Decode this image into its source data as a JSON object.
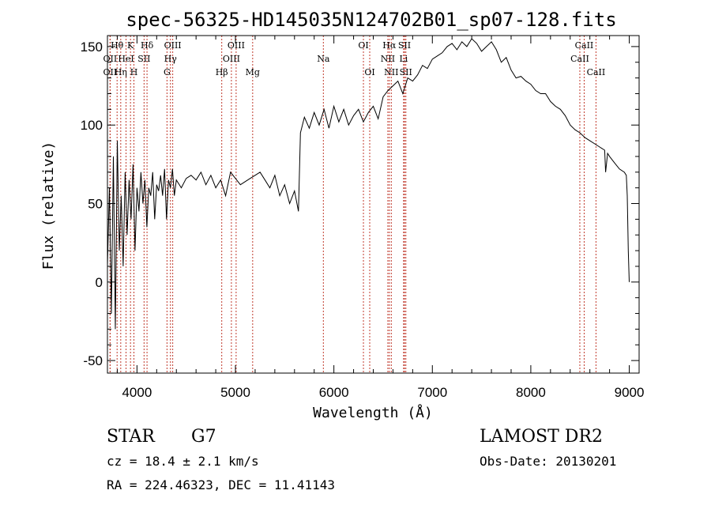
{
  "chart_data": {
    "type": "line",
    "title": "spec-56325-HD145035N124702B01_sp07-128.fits",
    "xlabel": "Wavelength (Å)",
    "ylabel": "Flux (relative)",
    "xlim": [
      3700,
      9100
    ],
    "ylim": [
      -58,
      157
    ],
    "x_ticks": [
      4000,
      5000,
      6000,
      7000,
      8000,
      9000
    ],
    "y_ticks": [
      -50,
      0,
      50,
      100,
      150
    ],
    "line_color": "#c0392b",
    "series": [
      {
        "x": [
          3700,
          3720,
          3740,
          3760,
          3780,
          3800,
          3820,
          3840,
          3860,
          3880,
          3900,
          3920,
          3940,
          3960,
          3980,
          4000,
          4020,
          4040,
          4060,
          4080,
          4100,
          4120,
          4140,
          4160,
          4180,
          4200,
          4220,
          4240,
          4260,
          4280,
          4300,
          4320,
          4340,
          4360,
          4380,
          4400,
          4450,
          4500,
          4550,
          4600,
          4650,
          4700,
          4750,
          4800,
          4850,
          4900,
          4950,
          5000,
          5050,
          5100,
          5150,
          5200,
          5250,
          5300,
          5350,
          5400,
          5450,
          5500,
          5550,
          5600,
          5640,
          5660,
          5680,
          5700,
          5750,
          5800,
          5850,
          5900,
          5950,
          6000,
          6050,
          6100,
          6150,
          6200,
          6250,
          6300,
          6350,
          6400,
          6450,
          6500,
          6550,
          6600,
          6650,
          6700,
          6750,
          6800,
          6850,
          6900,
          6950,
          7000,
          7050,
          7100,
          7150,
          7200,
          7250,
          7300,
          7350,
          7400,
          7450,
          7500,
          7550,
          7600,
          7650,
          7700,
          7750,
          7800,
          7850,
          7900,
          7950,
          8000,
          8050,
          8100,
          8150,
          8200,
          8250,
          8300,
          8350,
          8400,
          8450,
          8500,
          8550,
          8600,
          8650,
          8700,
          8750,
          8760,
          8780,
          8800,
          8850,
          8900,
          8950,
          8970,
          8980,
          8990,
          9000
        ],
        "y": [
          10,
          60,
          -20,
          80,
          -30,
          90,
          20,
          55,
          10,
          70,
          30,
          65,
          40,
          75,
          20,
          60,
          45,
          70,
          50,
          65,
          35,
          60,
          55,
          70,
          40,
          62,
          58,
          68,
          55,
          72,
          40,
          65,
          60,
          72,
          55,
          65,
          60,
          66,
          68,
          65,
          70,
          62,
          68,
          60,
          65,
          55,
          70,
          66,
          62,
          64,
          66,
          68,
          70,
          65,
          60,
          68,
          55,
          62,
          50,
          58,
          45,
          95,
          100,
          105,
          98,
          108,
          100,
          110,
          98,
          112,
          102,
          110,
          100,
          106,
          110,
          102,
          108,
          112,
          104,
          118,
          122,
          125,
          128,
          120,
          130,
          128,
          132,
          138,
          136,
          142,
          144,
          146,
          150,
          152,
          148,
          153,
          150,
          155,
          152,
          147,
          150,
          153,
          148,
          140,
          143,
          135,
          130,
          131,
          128,
          126,
          122,
          120,
          120,
          115,
          112,
          110,
          106,
          100,
          97,
          95,
          92,
          90,
          88,
          86,
          84,
          70,
          82,
          80,
          76,
          72,
          70,
          68,
          55,
          20,
          0
        ]
      }
    ],
    "spectral_lines": [
      {
        "label": "Hθ",
        "x": 3798,
        "row": 1
      },
      {
        "label": "OII",
        "x": 3727,
        "row": 2
      },
      {
        "label": "OII",
        "x": 3727,
        "row": 3
      },
      {
        "label": "K",
        "x": 3934,
        "row": 1
      },
      {
        "label": "HeI",
        "x": 3889,
        "row": 2
      },
      {
        "label": "Hη",
        "x": 3835,
        "row": 3
      },
      {
        "label": "H",
        "x": 3969,
        "row": 3
      },
      {
        "label": "Hδ",
        "x": 4102,
        "row": 1
      },
      {
        "label": "SII",
        "x": 4072,
        "row": 2
      },
      {
        "label": "OIII",
        "x": 4363,
        "row": 1
      },
      {
        "label": "Hγ",
        "x": 4340,
        "row": 2
      },
      {
        "label": "G",
        "x": 4305,
        "row": 3
      },
      {
        "label": "OIII",
        "x": 5007,
        "row": 1
      },
      {
        "label": "OIII",
        "x": 4959,
        "row": 2
      },
      {
        "label": "Hβ",
        "x": 4861,
        "row": 3
      },
      {
        "label": "Mg",
        "x": 5175,
        "row": 3
      },
      {
        "label": "Na",
        "x": 5893,
        "row": 2
      },
      {
        "label": "OI",
        "x": 6300,
        "row": 1
      },
      {
        "label": "OI",
        "x": 6364,
        "row": 3
      },
      {
        "label": "Hα",
        "x": 6563,
        "row": 1
      },
      {
        "label": "NII",
        "x": 6548,
        "row": 2
      },
      {
        "label": "NII",
        "x": 6583,
        "row": 3
      },
      {
        "label": "SII",
        "x": 6717,
        "row": 1
      },
      {
        "label": "Li",
        "x": 6708,
        "row": 2
      },
      {
        "label": "SII",
        "x": 6731,
        "row": 3
      },
      {
        "label": "CaII",
        "x": 8542,
        "row": 1
      },
      {
        "label": "CaII",
        "x": 8498,
        "row": 2
      },
      {
        "label": "CaII",
        "x": 8662,
        "row": 3
      }
    ],
    "grid": false
  },
  "info": {
    "object_class": "STAR",
    "subclass": "G7",
    "survey": "LAMOST DR2",
    "cz": "cz = 18.4 ± 2.1 km/s",
    "obs_date": "Obs-Date: 20130201",
    "coords": "RA = 224.46323, DEC =  11.41143"
  }
}
